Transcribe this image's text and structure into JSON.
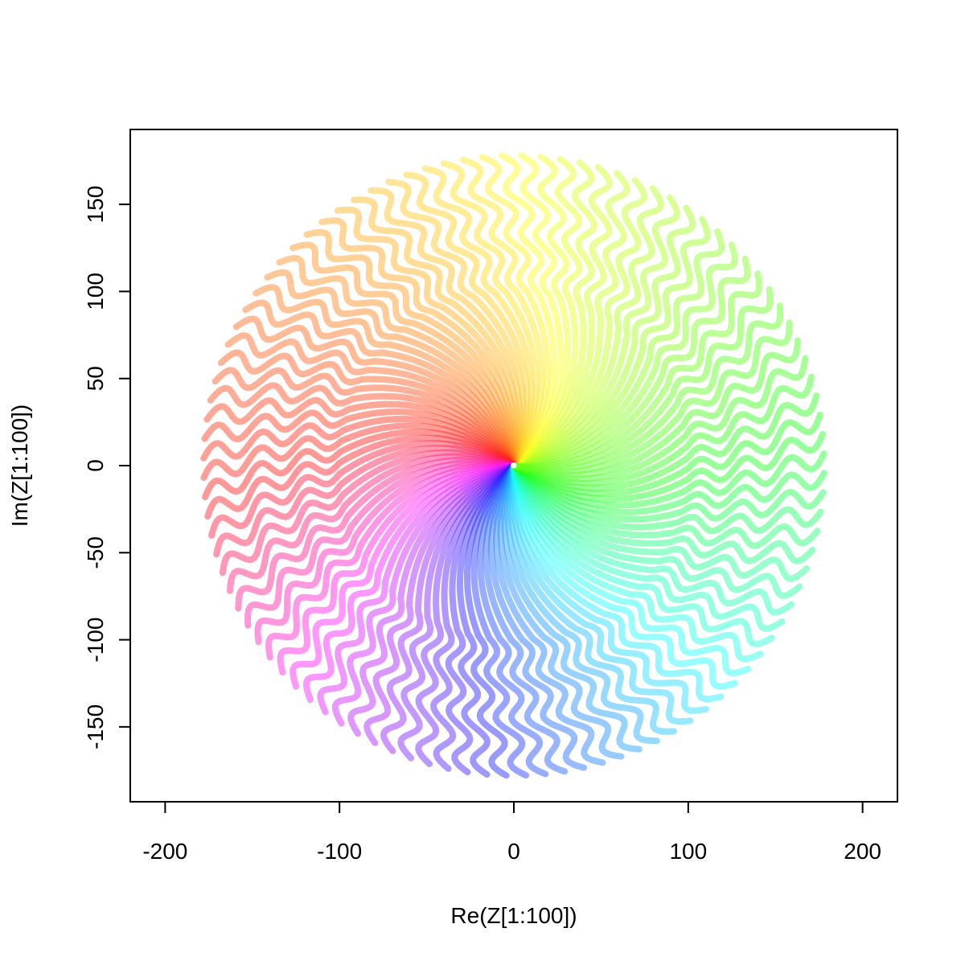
{
  "chart_data": {
    "type": "line",
    "title": "",
    "xlabel": "Re(Z[1:100])",
    "ylabel": "Im(Z[1:100])",
    "xlim": [
      -220,
      220
    ],
    "ylim": [
      -193,
      193
    ],
    "xticks": [
      "-200",
      "-100",
      "0",
      "100",
      "200"
    ],
    "yticks": [
      "-150",
      "-100",
      "-50",
      "0",
      "50",
      "100",
      "150"
    ],
    "grid": false,
    "legend": "none",
    "series_count": 100,
    "description_params": {
      "points_per_path": 100,
      "inner_ring_radius": 100,
      "outer_end_radius": 178,
      "color_scale": "rainbow (hue by angle)"
    },
    "center_marker": {
      "x": 0,
      "y": 0,
      "color": "#ffffff"
    }
  }
}
